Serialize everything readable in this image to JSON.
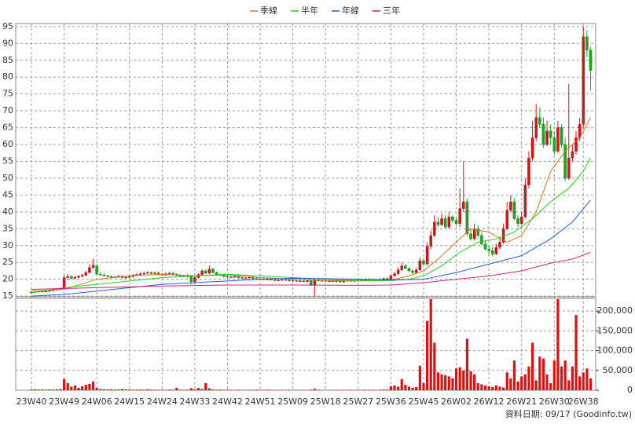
{
  "chart_data": [
    {
      "type": "candlestick",
      "up_color": "#e01010",
      "down_color": "#10b010",
      "ylim": [
        14.8,
        95.9
      ],
      "yticks": [
        15,
        20,
        25,
        30,
        35,
        40,
        45,
        50,
        55,
        60,
        65,
        70,
        75,
        80,
        85,
        90,
        95
      ],
      "grid": true,
      "open": [
        16.0,
        16.2,
        16.3,
        16.4,
        16.3,
        16.5,
        16.6,
        16.8,
        17.0,
        17.3,
        20.5,
        20.8,
        20.3,
        20.6,
        20.9,
        21.2,
        22.0,
        23.5,
        24.0,
        21.5,
        21.3,
        21.0,
        20.8,
        20.6,
        20.7,
        20.9,
        20.5,
        20.6,
        20.8,
        21.2,
        21.4,
        21.6,
        21.8,
        22.0,
        21.7,
        21.9,
        21.5,
        21.3,
        21.6,
        21.8,
        21.5,
        21.2,
        21.0,
        20.8,
        21.1,
        19.3,
        20.5,
        21.4,
        22.5,
        21.8,
        23.0,
        22.0,
        21.3,
        21.2,
        20.8,
        20.6,
        20.7,
        20.9,
        20.5,
        20.3,
        20.4,
        20.6,
        20.2,
        20.0,
        20.1,
        19.9,
        20.0,
        19.8,
        19.6,
        19.7,
        19.9,
        19.8,
        19.5,
        19.6,
        19.4,
        19.5,
        19.3,
        19.6,
        18.2,
        19.8,
        19.5,
        19.6,
        19.4,
        19.5,
        19.3,
        19.6,
        19.2,
        19.5,
        19.7,
        19.4,
        19.6,
        19.8,
        19.6,
        19.9,
        20.0,
        19.8,
        19.6,
        19.9,
        20.2,
        20.0,
        21.0,
        21.6,
        22.8,
        24.0,
        23.2,
        22.5,
        22.0,
        22.8,
        25.5,
        24.5,
        29.8,
        33.0,
        37.0,
        36.2,
        38.0,
        35.5,
        38.5,
        37.5,
        36.5,
        41.0,
        43.0,
        33.5,
        32.0,
        35.0,
        33.0,
        30.5,
        29.0,
        28.5,
        27.5,
        29.5,
        31.0,
        35.0,
        40.5,
        43.0,
        38.0,
        36.5,
        38.5,
        48.0,
        56.0,
        62.0,
        68.0,
        66.0,
        60.0,
        64.0,
        62.0,
        58.0,
        65.0,
        60.0,
        50.0,
        56.0,
        58.0,
        62.0,
        66.0,
        92.0,
        88.0
      ],
      "high": [
        16.5,
        16.6,
        16.7,
        16.7,
        16.8,
        16.9,
        17.1,
        17.3,
        17.5,
        21.2,
        21.5,
        21.2,
        21.0,
        21.3,
        21.6,
        22.5,
        24.5,
        26.0,
        24.3,
        22.0,
        21.7,
        21.4,
        21.2,
        21.0,
        21.3,
        21.2,
        21.0,
        21.2,
        21.6,
        21.8,
        22.0,
        22.2,
        22.4,
        22.3,
        22.3,
        22.2,
        21.9,
        22.0,
        22.2,
        22.1,
        21.8,
        21.5,
        21.3,
        21.5,
        21.3,
        20.9,
        21.8,
        23.0,
        22.9,
        24.0,
        23.4,
        22.3,
        21.7,
        21.5,
        21.2,
        21.0,
        21.2,
        21.2,
        20.9,
        20.7,
        20.9,
        20.9,
        20.5,
        20.5,
        20.4,
        20.3,
        20.3,
        20.1,
        20.0,
        20.2,
        20.2,
        20.1,
        20.0,
        19.9,
        19.8,
        19.8,
        19.9,
        19.9,
        20.2,
        20.1,
        19.9,
        19.9,
        19.8,
        19.8,
        19.9,
        19.9,
        19.8,
        20.0,
        20.0,
        19.9,
        20.1,
        20.1,
        20.2,
        20.3,
        20.3,
        20.1,
        20.2,
        20.5,
        20.6,
        21.4,
        22.2,
        23.5,
        25.0,
        24.5,
        23.6,
        23.0,
        23.4,
        26.5,
        26.2,
        31.0,
        34.5,
        39.0,
        38.5,
        39.5,
        39.0,
        40.0,
        39.0,
        38.5,
        47.0,
        55.0,
        44.0,
        35.0,
        36.5,
        36.0,
        34.0,
        31.5,
        30.0,
        29.5,
        30.5,
        32.5,
        36.5,
        43.0,
        45.0,
        44.0,
        39.0,
        40.0,
        50.0,
        58.0,
        67.0,
        72.0,
        71.0,
        68.0,
        67.0,
        66.0,
        64.0,
        67.0,
        66.0,
        62.0,
        78.0,
        60.0,
        64.0,
        68.0,
        95.0,
        94.0,
        89.0
      ],
      "low": [
        15.8,
        16.0,
        16.1,
        16.1,
        16.1,
        16.3,
        16.4,
        16.6,
        16.8,
        17.0,
        20.0,
        20.0,
        20.0,
        20.3,
        20.6,
        20.9,
        21.8,
        23.0,
        21.2,
        21.0,
        20.8,
        20.6,
        20.4,
        20.3,
        20.4,
        20.2,
        20.2,
        20.4,
        20.6,
        21.0,
        21.1,
        21.3,
        21.5,
        21.4,
        21.4,
        21.2,
        21.0,
        21.0,
        21.3,
        21.2,
        20.9,
        20.7,
        20.5,
        20.5,
        18.5,
        19.0,
        20.2,
        21.0,
        21.5,
        21.5,
        21.7,
        21.0,
        20.9,
        20.5,
        20.3,
        20.3,
        20.4,
        20.2,
        20.0,
        20.0,
        20.1,
        20.0,
        19.8,
        19.8,
        19.7,
        19.7,
        19.6,
        19.4,
        19.4,
        19.5,
        19.5,
        19.3,
        19.3,
        19.2,
        19.2,
        19.1,
        19.1,
        18.0,
        15.0,
        19.3,
        19.3,
        19.2,
        19.2,
        19.1,
        19.1,
        19.0,
        19.0,
        19.3,
        19.2,
        19.2,
        19.4,
        19.4,
        19.4,
        19.7,
        19.6,
        19.4,
        19.4,
        19.7,
        19.8,
        19.8,
        20.8,
        21.4,
        22.5,
        23.0,
        22.2,
        21.6,
        21.7,
        22.5,
        24.0,
        24.2,
        29.0,
        32.5,
        35.5,
        35.8,
        35.0,
        35.0,
        36.8,
        36.0,
        35.5,
        40.0,
        33.0,
        31.5,
        31.5,
        32.5,
        30.0,
        28.5,
        27.0,
        26.8,
        27.2,
        29.0,
        30.5,
        34.5,
        40.0,
        37.5,
        35.5,
        36.0,
        38.0,
        47.0,
        55.0,
        61.0,
        65.0,
        59.0,
        59.5,
        60.0,
        57.0,
        57.5,
        59.0,
        49.0,
        49.5,
        55.0,
        57.0,
        61.0,
        65.0,
        86.0,
        76.0
      ],
      "close": [
        16.2,
        16.3,
        16.4,
        16.3,
        16.5,
        16.6,
        16.8,
        17.0,
        17.2,
        20.5,
        20.8,
        20.3,
        20.6,
        20.9,
        21.2,
        22.0,
        23.5,
        24.2,
        21.5,
        21.3,
        21.0,
        20.8,
        20.6,
        20.7,
        20.9,
        20.5,
        20.6,
        20.8,
        21.2,
        21.4,
        21.6,
        21.8,
        22.0,
        21.7,
        21.9,
        21.5,
        21.3,
        21.6,
        21.8,
        21.5,
        21.2,
        21.0,
        20.8,
        21.1,
        19.3,
        20.5,
        21.4,
        22.5,
        21.8,
        23.0,
        22.0,
        21.3,
        21.2,
        20.8,
        20.6,
        20.7,
        20.9,
        20.5,
        20.3,
        20.4,
        20.6,
        20.2,
        20.0,
        20.1,
        19.9,
        20.0,
        19.8,
        19.6,
        19.7,
        19.9,
        19.8,
        19.5,
        19.6,
        19.4,
        19.5,
        19.3,
        19.6,
        18.2,
        19.8,
        19.5,
        19.6,
        19.4,
        19.5,
        19.3,
        19.6,
        19.2,
        19.5,
        19.7,
        19.4,
        19.6,
        19.8,
        19.6,
        19.9,
        20.0,
        19.8,
        19.6,
        19.9,
        20.2,
        20.0,
        21.0,
        21.6,
        22.8,
        24.0,
        23.2,
        22.5,
        22.0,
        22.8,
        25.5,
        24.5,
        29.8,
        33.0,
        37.0,
        36.2,
        38.0,
        35.5,
        38.5,
        37.5,
        36.5,
        41.0,
        43.0,
        33.5,
        32.0,
        35.0,
        33.0,
        30.5,
        29.0,
        28.5,
        27.5,
        29.5,
        31.0,
        35.0,
        40.5,
        43.0,
        38.0,
        36.5,
        38.5,
        48.0,
        56.0,
        62.0,
        68.0,
        66.0,
        60.0,
        64.0,
        62.0,
        58.0,
        65.0,
        60.0,
        50.0,
        56.0,
        58.0,
        62.0,
        66.0,
        92.0,
        88.0,
        82.0
      ],
      "lines": [
        {
          "name": "季線",
          "color": "#e07020",
          "x": [
            0,
            9,
            18,
            27,
            36,
            45,
            54,
            63,
            72,
            81,
            90,
            99,
            104,
            108,
            112,
            117,
            121,
            126,
            131,
            135,
            139,
            143,
            147,
            151,
            154
          ],
          "values": [
            16.5,
            17,
            20,
            21,
            21.5,
            21,
            21.3,
            20.5,
            20,
            19.6,
            19.5,
            19.8,
            21,
            22.5,
            26,
            31,
            35,
            34,
            31,
            33,
            40,
            52,
            58,
            62,
            68
          ]
        },
        {
          "name": "半年",
          "color": "#20d020",
          "x": [
            0,
            9,
            18,
            27,
            36,
            45,
            54,
            63,
            72,
            81,
            90,
            99,
            104,
            108,
            113,
            118,
            123,
            128,
            133,
            138,
            143,
            148,
            152,
            154
          ],
          "values": [
            16,
            17.5,
            18.5,
            19.5,
            20.5,
            21,
            21.5,
            21,
            20.5,
            20,
            19.6,
            19.6,
            20,
            21,
            24,
            28,
            31,
            32,
            34,
            38,
            43,
            47,
            52,
            56
          ]
        },
        {
          "name": "年線",
          "color": "#2060d0",
          "x": [
            0,
            9,
            18,
            27,
            36,
            45,
            54,
            63,
            72,
            81,
            90,
            99,
            108,
            117,
            126,
            135,
            143,
            149,
            154
          ],
          "values": [
            15,
            15.5,
            16.5,
            17.5,
            18.5,
            19,
            19.5,
            20,
            20.3,
            20.2,
            20,
            19.8,
            20,
            22,
            24.5,
            27,
            32,
            37,
            43.5
          ]
        },
        {
          "name": "三年",
          "color": "#d02070",
          "x": [
            0,
            18,
            36,
            54,
            72,
            90,
            99,
            108,
            117,
            126,
            135,
            143,
            149,
            154
          ],
          "values": [
            17,
            17.5,
            18,
            18.3,
            18.3,
            18.2,
            18.3,
            19,
            20,
            21,
            22.5,
            24.8,
            26,
            28
          ]
        }
      ]
    },
    {
      "type": "bar",
      "color": "#e01010",
      "ylim": [
        0,
        232000
      ],
      "grid": true,
      "yticks": [
        0,
        {
          "value": 50000,
          "label": "50,000"
        },
        {
          "value": 100000,
          "label": "100,000"
        },
        {
          "value": 150000,
          "label": "150,000"
        },
        {
          "value": 200000,
          "label": "200,000"
        }
      ],
      "categories": [
        "23W40",
        null,
        null,
        null,
        null,
        null,
        null,
        null,
        null,
        "23W49",
        null,
        null,
        null,
        null,
        null,
        null,
        null,
        null,
        "24W06",
        null,
        null,
        null,
        null,
        null,
        null,
        null,
        null,
        "24W15",
        null,
        null,
        null,
        null,
        null,
        null,
        null,
        null,
        "24W24",
        null,
        null,
        null,
        null,
        null,
        null,
        null,
        null,
        "24W33",
        null,
        null,
        null,
        null,
        null,
        null,
        null,
        null,
        "24W42",
        null,
        null,
        null,
        null,
        null,
        null,
        null,
        null,
        "24W51",
        null,
        null,
        null,
        null,
        null,
        null,
        null,
        null,
        "25W09",
        null,
        null,
        null,
        null,
        null,
        null,
        null,
        null,
        "25W18",
        null,
        null,
        null,
        null,
        null,
        null,
        null,
        null,
        "25W27",
        null,
        null,
        null,
        null,
        null,
        null,
        null,
        null,
        "25W36",
        null,
        null,
        null,
        null,
        null,
        null,
        null,
        null,
        "25W45",
        null,
        null,
        null,
        null,
        null,
        null,
        null,
        null,
        "26W02",
        null,
        null,
        null,
        null,
        null,
        null,
        null,
        null,
        "26W12",
        null,
        null,
        null,
        null,
        null,
        null,
        null,
        null,
        "26W21",
        null,
        null,
        null,
        null,
        null,
        null,
        null,
        null,
        "26W30",
        null,
        null,
        null,
        null,
        null,
        null,
        null,
        "26W38",
        null,
        null
      ],
      "values": [
        2000,
        2500,
        1800,
        2200,
        1500,
        2000,
        1800,
        2500,
        3000,
        28000,
        18000,
        9000,
        12000,
        6000,
        10000,
        14000,
        16000,
        22000,
        6000,
        3000,
        2500,
        2000,
        2500,
        1800,
        2000,
        3000,
        2200,
        2000,
        1500,
        1800,
        2000,
        1500,
        2500,
        1800,
        1500,
        1200,
        1500,
        1200,
        1800,
        1500,
        6000,
        1500,
        1200,
        1800,
        5000,
        2500,
        6000,
        3000,
        18000,
        5000,
        2000,
        1500,
        1800,
        1200,
        1500,
        1200,
        1000,
        1500,
        1200,
        1000,
        1300,
        1100,
        1500,
        1200,
        1000,
        1500,
        1200,
        1000,
        1100,
        1300,
        1000,
        1200,
        1000,
        1200,
        900,
        1100,
        1000,
        1500,
        3500,
        1200,
        1000,
        1000,
        1100,
        900,
        1200,
        1000,
        900,
        1100,
        1200,
        1000,
        1200,
        1000,
        1500,
        1300,
        1200,
        1000,
        1500,
        2000,
        1800,
        10000,
        12000,
        9000,
        28000,
        14000,
        9000,
        6000,
        8000,
        62000,
        18000,
        175000,
        230000,
        120000,
        45000,
        40000,
        38000,
        35000,
        30000,
        55000,
        58000,
        50000,
        130000,
        48000,
        40000,
        18000,
        15000,
        12000,
        10000,
        8000,
        12000,
        9000,
        7000,
        45000,
        30000,
        75000,
        22000,
        35000,
        40000,
        60000,
        120000,
        25000,
        85000,
        80000,
        40000,
        18000,
        75000,
        230000,
        60000,
        75000,
        25000,
        60000,
        190000,
        35000,
        45000,
        55000,
        30000
      ]
    }
  ],
  "footer": "資料日期: 09/17 (Goodinfo.tw)"
}
